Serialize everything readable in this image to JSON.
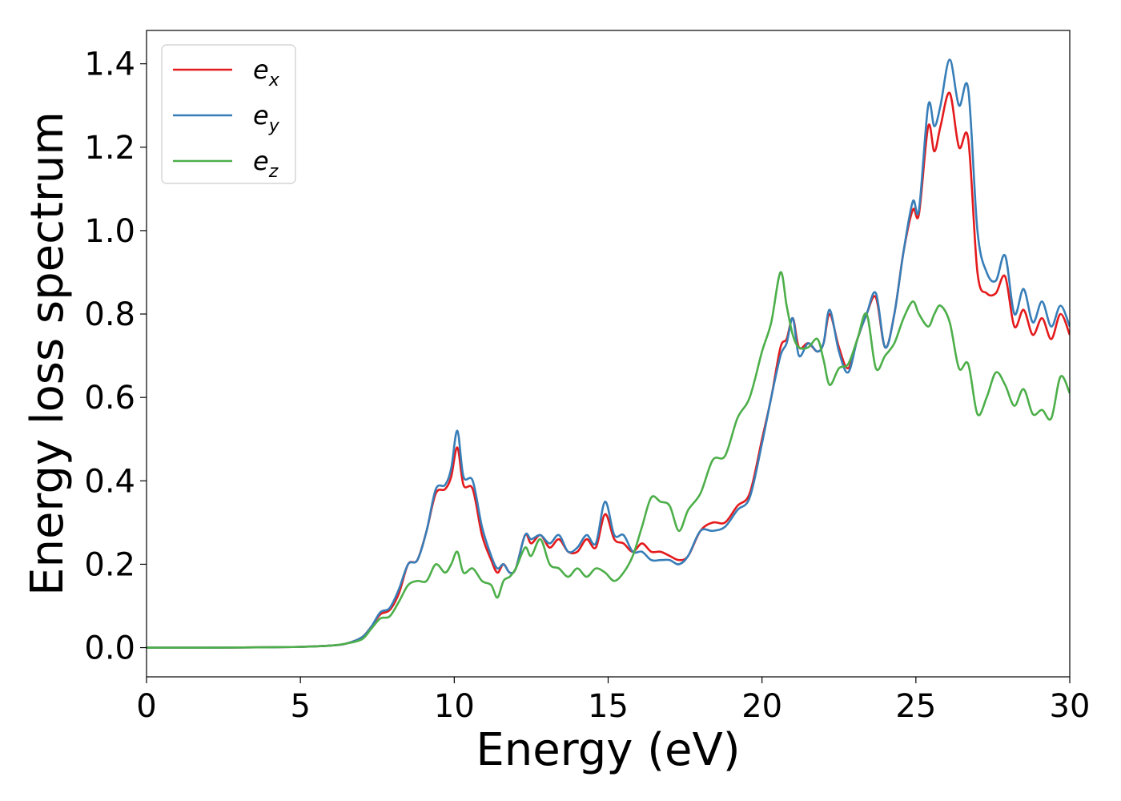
{
  "chart_data": {
    "type": "line",
    "title": "",
    "xlabel": "Energy (eV)",
    "ylabel": "Energy loss spectrum",
    "xlim": [
      0,
      30
    ],
    "ylim": [
      -0.07,
      1.48
    ],
    "xticks": [
      0,
      5,
      10,
      15,
      20,
      25,
      30
    ],
    "yticks": [
      0.0,
      0.2,
      0.4,
      0.6,
      0.8,
      1.0,
      1.2,
      1.4
    ],
    "xtick_labels": [
      "0",
      "5",
      "10",
      "15",
      "20",
      "25",
      "30"
    ],
    "ytick_labels": [
      "0.0",
      "0.2",
      "0.4",
      "0.6",
      "0.8",
      "1.0",
      "1.2",
      "1.4"
    ],
    "grid": false,
    "legend_position": "top-left",
    "series": [
      {
        "name": "e",
        "subscript": "x",
        "color": "#e41a1c",
        "x": [
          0,
          2,
          4,
          5,
          6,
          6.5,
          7,
          7.3,
          7.6,
          7.9,
          8.2,
          8.5,
          8.8,
          9.1,
          9.4,
          9.7,
          9.9,
          10.1,
          10.3,
          10.6,
          10.9,
          11.2,
          11.4,
          11.6,
          11.8,
          12.0,
          12.3,
          12.5,
          12.8,
          13.1,
          13.4,
          13.7,
          14.0,
          14.3,
          14.6,
          14.9,
          15.2,
          15.5,
          15.8,
          16.1,
          16.4,
          16.7,
          17.0,
          17.3,
          17.6,
          18.0,
          18.4,
          18.8,
          19.2,
          19.6,
          20.0,
          20.3,
          20.6,
          20.8,
          21.0,
          21.2,
          21.5,
          21.8,
          22.0,
          22.2,
          22.5,
          22.8,
          23.1,
          23.4,
          23.7,
          24.0,
          24.3,
          24.6,
          24.9,
          25.1,
          25.4,
          25.6,
          25.8,
          26.1,
          26.4,
          26.7,
          27.0,
          27.3,
          27.6,
          27.9,
          28.2,
          28.5,
          28.8,
          29.1,
          29.4,
          29.7,
          30.0
        ],
        "values": [
          0.0,
          0.0,
          0.001,
          0.002,
          0.005,
          0.01,
          0.025,
          0.05,
          0.08,
          0.09,
          0.13,
          0.2,
          0.21,
          0.28,
          0.37,
          0.38,
          0.41,
          0.48,
          0.39,
          0.38,
          0.27,
          0.21,
          0.18,
          0.2,
          0.18,
          0.19,
          0.27,
          0.25,
          0.27,
          0.24,
          0.26,
          0.23,
          0.23,
          0.26,
          0.24,
          0.32,
          0.26,
          0.25,
          0.23,
          0.25,
          0.23,
          0.23,
          0.22,
          0.21,
          0.22,
          0.28,
          0.3,
          0.3,
          0.34,
          0.37,
          0.5,
          0.6,
          0.72,
          0.74,
          0.79,
          0.72,
          0.73,
          0.71,
          0.73,
          0.8,
          0.72,
          0.67,
          0.74,
          0.8,
          0.84,
          0.72,
          0.8,
          0.95,
          1.05,
          1.04,
          1.25,
          1.19,
          1.25,
          1.33,
          1.2,
          1.22,
          0.9,
          0.85,
          0.85,
          0.89,
          0.77,
          0.81,
          0.75,
          0.79,
          0.74,
          0.8,
          0.75
        ]
      },
      {
        "name": "e",
        "subscript": "y",
        "color": "#377eb8",
        "x": [
          0,
          2,
          4,
          5,
          6,
          6.5,
          7,
          7.3,
          7.6,
          7.9,
          8.2,
          8.5,
          8.8,
          9.1,
          9.4,
          9.7,
          9.9,
          10.1,
          10.3,
          10.6,
          10.9,
          11.2,
          11.4,
          11.6,
          11.8,
          12.0,
          12.3,
          12.5,
          12.8,
          13.1,
          13.4,
          13.7,
          14.0,
          14.3,
          14.6,
          14.9,
          15.2,
          15.5,
          15.8,
          16.1,
          16.4,
          16.7,
          17.0,
          17.3,
          17.6,
          18.0,
          18.4,
          18.8,
          19.2,
          19.6,
          20.0,
          20.3,
          20.6,
          20.8,
          21.0,
          21.2,
          21.5,
          21.8,
          22.0,
          22.2,
          22.5,
          22.8,
          23.1,
          23.4,
          23.7,
          24.0,
          24.3,
          24.6,
          24.9,
          25.1,
          25.4,
          25.6,
          25.8,
          26.1,
          26.4,
          26.7,
          27.0,
          27.3,
          27.6,
          27.9,
          28.2,
          28.5,
          28.8,
          29.1,
          29.4,
          29.7,
          30.0
        ],
        "values": [
          0.0,
          0.0,
          0.001,
          0.002,
          0.005,
          0.01,
          0.025,
          0.05,
          0.085,
          0.095,
          0.14,
          0.2,
          0.21,
          0.28,
          0.38,
          0.39,
          0.43,
          0.52,
          0.41,
          0.4,
          0.29,
          0.22,
          0.19,
          0.2,
          0.18,
          0.19,
          0.27,
          0.26,
          0.27,
          0.25,
          0.27,
          0.23,
          0.24,
          0.27,
          0.25,
          0.35,
          0.27,
          0.27,
          0.23,
          0.23,
          0.21,
          0.21,
          0.21,
          0.2,
          0.22,
          0.28,
          0.28,
          0.29,
          0.33,
          0.36,
          0.49,
          0.6,
          0.7,
          0.73,
          0.79,
          0.7,
          0.73,
          0.71,
          0.73,
          0.81,
          0.71,
          0.66,
          0.74,
          0.8,
          0.85,
          0.72,
          0.8,
          0.95,
          1.07,
          1.05,
          1.3,
          1.25,
          1.3,
          1.41,
          1.3,
          1.34,
          1.0,
          0.9,
          0.88,
          0.94,
          0.8,
          0.86,
          0.78,
          0.83,
          0.77,
          0.82,
          0.77
        ]
      },
      {
        "name": "e",
        "subscript": "z",
        "color": "#4daf4a",
        "x": [
          0,
          2,
          4,
          5,
          6,
          6.5,
          7,
          7.3,
          7.6,
          7.9,
          8.2,
          8.5,
          8.8,
          9.1,
          9.4,
          9.7,
          9.9,
          10.1,
          10.3,
          10.6,
          10.9,
          11.2,
          11.4,
          11.6,
          11.8,
          12.0,
          12.3,
          12.5,
          12.8,
          13.1,
          13.4,
          13.7,
          14.0,
          14.3,
          14.6,
          14.9,
          15.2,
          15.5,
          15.8,
          16.1,
          16.4,
          16.7,
          17.0,
          17.3,
          17.6,
          18.0,
          18.4,
          18.8,
          19.2,
          19.6,
          20.0,
          20.3,
          20.6,
          20.8,
          21.0,
          21.2,
          21.5,
          21.8,
          22.0,
          22.2,
          22.5,
          22.8,
          23.1,
          23.4,
          23.7,
          24.0,
          24.3,
          24.6,
          24.9,
          25.1,
          25.4,
          25.6,
          25.8,
          26.1,
          26.4,
          26.7,
          27.0,
          27.3,
          27.6,
          27.9,
          28.2,
          28.5,
          28.8,
          29.1,
          29.4,
          29.7,
          30.0
        ],
        "values": [
          0.0,
          0.0,
          0.001,
          0.002,
          0.005,
          0.01,
          0.02,
          0.045,
          0.07,
          0.075,
          0.11,
          0.15,
          0.16,
          0.16,
          0.2,
          0.18,
          0.2,
          0.23,
          0.18,
          0.19,
          0.16,
          0.15,
          0.12,
          0.16,
          0.17,
          0.19,
          0.24,
          0.22,
          0.26,
          0.2,
          0.19,
          0.17,
          0.19,
          0.17,
          0.19,
          0.18,
          0.16,
          0.18,
          0.22,
          0.29,
          0.36,
          0.35,
          0.34,
          0.28,
          0.33,
          0.37,
          0.45,
          0.46,
          0.55,
          0.6,
          0.71,
          0.78,
          0.9,
          0.82,
          0.75,
          0.72,
          0.72,
          0.74,
          0.69,
          0.63,
          0.67,
          0.68,
          0.74,
          0.8,
          0.67,
          0.7,
          0.73,
          0.79,
          0.83,
          0.8,
          0.77,
          0.8,
          0.82,
          0.78,
          0.67,
          0.68,
          0.56,
          0.6,
          0.66,
          0.63,
          0.58,
          0.62,
          0.56,
          0.57,
          0.55,
          0.65,
          0.61
        ]
      }
    ]
  }
}
